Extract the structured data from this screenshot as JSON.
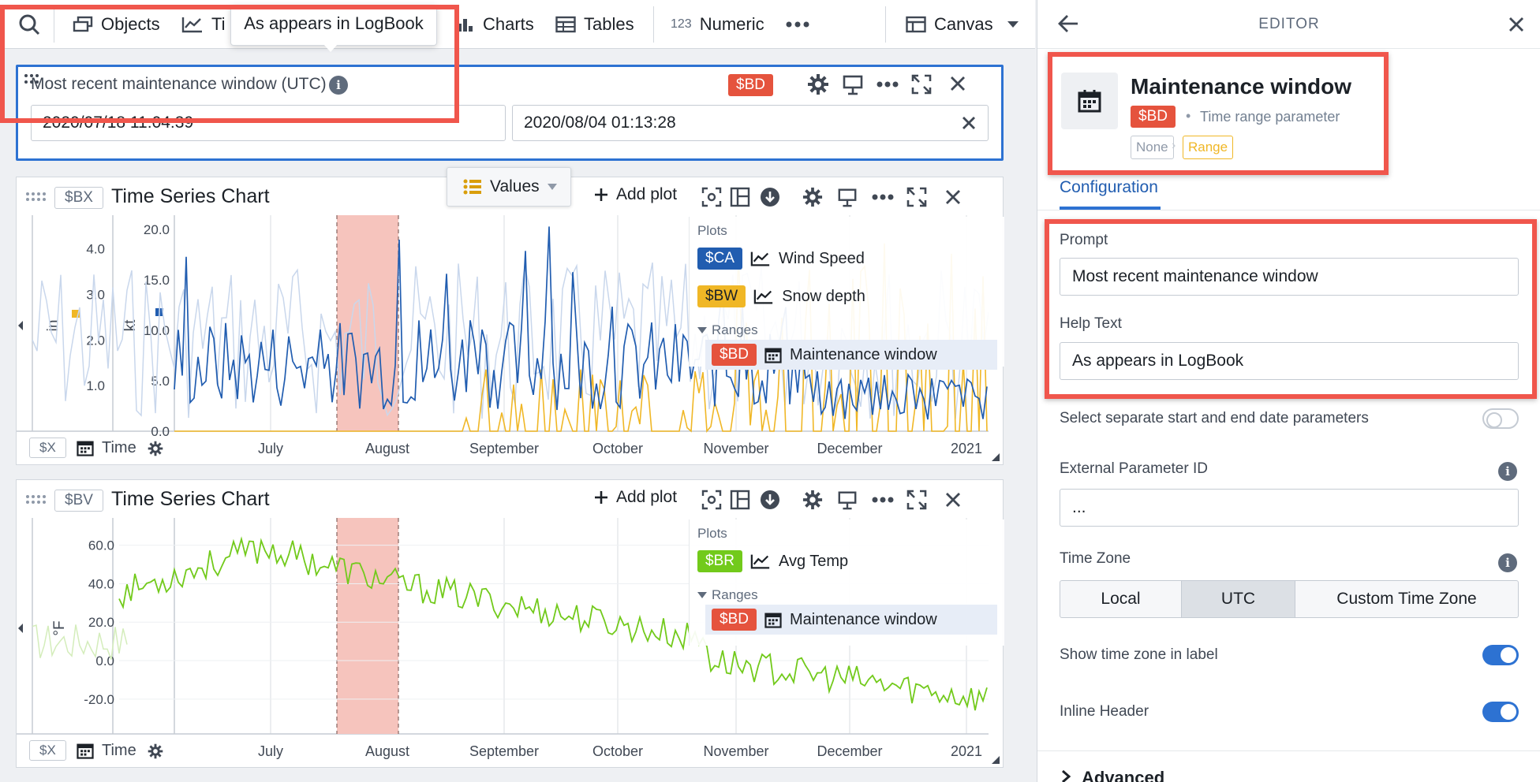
{
  "toolbar": {
    "items": [
      {
        "label": "Objects",
        "icon": "objects-icon"
      },
      {
        "label": "Ti",
        "icon": "time-series-icon"
      },
      {
        "label": "Charts",
        "icon": "charts-icon"
      },
      {
        "label": "Tables",
        "icon": "tables-icon"
      },
      {
        "label": "Numeric",
        "prefix": "123",
        "icon": "numeric-icon"
      }
    ],
    "canvas_label": "Canvas"
  },
  "tooltip": "As appears in LogBook",
  "param_widget": {
    "title": "Most recent maintenance window (UTC)",
    "badge": "$BD",
    "start": "2020/07/18 11:04:39",
    "end": "2020/08/04 01:13:28"
  },
  "values_dropdown": "Values",
  "charts": [
    {
      "id_badge": "$BX",
      "title": "Time Series Chart",
      "add_plot": "Add plot",
      "axis_left_label": "in",
      "axis_mid_label": "kt",
      "y_ticks": [
        "20.0",
        "15.0",
        "10.0",
        "5.0",
        "0.0"
      ],
      "y_ticks_left": [
        "4.0",
        "3.0",
        "2.0",
        "1.0"
      ],
      "x_badge": "$X",
      "x_label": "Time",
      "months": [
        "July",
        "August",
        "September",
        "October",
        "November",
        "December",
        "2021"
      ],
      "legend": {
        "plots_header": "Plots",
        "plots": [
          {
            "badge": "$CA",
            "color": "#215db0",
            "name": "Wind Speed"
          },
          {
            "badge": "$BW",
            "color": "#f0b726",
            "name": "Snow depth"
          }
        ],
        "ranges_header": "Ranges",
        "range": {
          "badge": "$BD",
          "name": "Maintenance window"
        }
      }
    },
    {
      "id_badge": "$BV",
      "title": "Time Series Chart",
      "add_plot": "Add plot",
      "axis_left_label": "°F",
      "y_ticks": [
        "60.0",
        "40.0",
        "20.0",
        "0.0",
        "-20.0"
      ],
      "x_badge": "$X",
      "x_label": "Time",
      "months": [
        "July",
        "August",
        "September",
        "October",
        "November",
        "December",
        "2021"
      ],
      "legend": {
        "plots_header": "Plots",
        "plots": [
          {
            "badge": "$BR",
            "color": "#72ca1b",
            "name": "Avg Temp"
          }
        ],
        "ranges_header": "Ranges",
        "range": {
          "badge": "$BD",
          "name": "Maintenance window"
        }
      }
    }
  ],
  "editor": {
    "header": "EDITOR",
    "param_name": "Maintenance window",
    "param_badge": "$BD",
    "param_type": "Time range parameter",
    "type_none": "None",
    "type_range": "Range",
    "tab": "Configuration",
    "prompt_label": "Prompt",
    "prompt_value": "Most recent maintenance window",
    "help_label": "Help Text",
    "help_value": "As appears in LogBook",
    "separate_label": "Select separate start and end date parameters",
    "external_id_label": "External Parameter ID",
    "external_id_value": "...",
    "timezone_label": "Time Zone",
    "tz_options": [
      "Local",
      "UTC",
      "Custom Time Zone"
    ],
    "tz_selected": "UTC",
    "show_tz_label": "Show time zone in label",
    "inline_header_label": "Inline Header",
    "advanced_label": "Advanced"
  },
  "colors": {
    "accent": "#2d72d2",
    "badge_red": "#e5533d",
    "highlight_red": "#f0564c",
    "wind": "#215db0",
    "snow": "#f0b726",
    "temp": "#72ca1b",
    "range_fill": "#f6c4bd"
  }
}
